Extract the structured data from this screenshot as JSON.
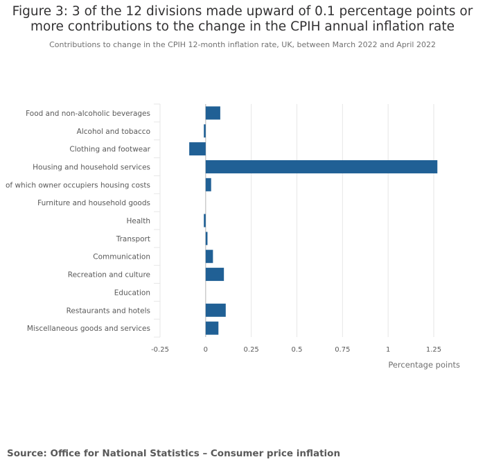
{
  "header": {
    "title_line1": "Figure 3: 3 of the 12 divisions made upward of 0.1 percentage points or",
    "title_line2": "more contributions to the change in the CPIH annual inflation rate",
    "subtitle": "Contributions to change in the CPIH 12-month inflation rate, UK, between March 2022 and April 2022"
  },
  "footer": {
    "source": "Source: Office for National Statistics – Consumer price inflation"
  },
  "colors": {
    "bar": "#206095",
    "grid": "#e6e6e6",
    "zero_line": "#b3b3b3"
  },
  "chart_data": {
    "type": "bar",
    "orientation": "horizontal",
    "title": "Figure 3: 3 of the 12 divisions made upward of 0.1 percentage points or more contributions to the change in the CPIH annual inflation rate",
    "subtitle": "Contributions to change in the CPIH 12-month inflation rate, UK, between March 2022 and April 2022",
    "xlabel": "Percentage points",
    "ylabel": "",
    "xlim": [
      -0.25,
      1.25
    ],
    "xticks": [
      -0.25,
      0,
      0.25,
      0.5,
      0.75,
      1,
      1.25
    ],
    "xtick_labels": [
      "-0.25",
      "0",
      "0.25",
      "0.5",
      "0.75",
      "1",
      "1.25"
    ],
    "grid": true,
    "categories": [
      "Food and non-alcoholic beverages",
      "Alcohol and tobacco",
      "Clothing and footwear",
      "Housing and household services",
      "of which owner occupiers housing costs",
      "Furniture and household goods",
      "Health",
      "Transport",
      "Communication",
      "Recreation and culture",
      "Education",
      "Restaurants and hotels",
      "Miscellaneous goods and services"
    ],
    "values": [
      0.08,
      -0.01,
      -0.09,
      1.27,
      0.03,
      0.0,
      -0.01,
      0.01,
      0.04,
      0.1,
      0.0,
      0.11,
      0.07
    ]
  }
}
